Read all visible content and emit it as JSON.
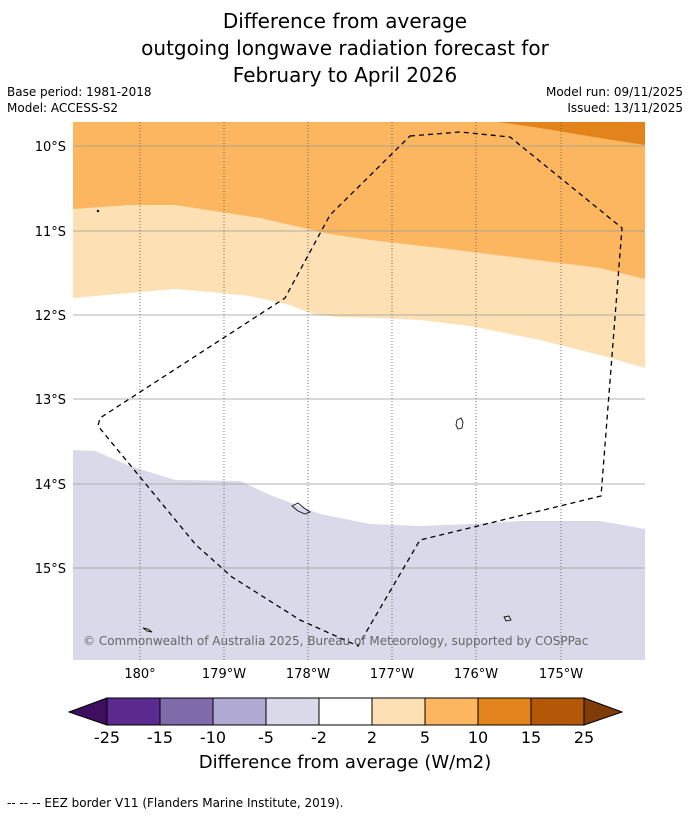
{
  "title": {
    "line1": "Difference from average",
    "line2": "outgoing longwave radiation forecast for",
    "line3": "February to April 2026"
  },
  "meta": {
    "base_period": "Base period: 1981-2018",
    "model": "Model: ACCESS-S2",
    "model_run": "Model run: 09/11/2025",
    "issued": "Issued: 13/11/2025"
  },
  "map": {
    "lat_labels": [
      "10°S",
      "11°S",
      "12°S",
      "13°S",
      "14°S",
      "15°S"
    ],
    "lon_labels": [
      "180°",
      "179°W",
      "178°W",
      "177°W",
      "176°W",
      "175°W"
    ],
    "copyright": "© Commonwealth of Australia 2025, Bureau of Meteorology, supported by COSPPac"
  },
  "colorbar": {
    "ticks": [
      "-25",
      "-15",
      "-10",
      "-5",
      "-2",
      "2",
      "5",
      "10",
      "15",
      "25"
    ],
    "colors": [
      "#3d0f5e",
      "#5b2a8e",
      "#7f6aaa",
      "#b0a9d2",
      "#d9d9ea",
      "#ffffff",
      "#fde0b3",
      "#fcb660",
      "#e3831b",
      "#b35806",
      "#7f3b08"
    ],
    "title": "Difference from average (W/m2)"
  },
  "legend": {
    "eez_text": "--  --  -- EEZ border V11 (Flanders Marine Institute, 2019)."
  }
}
